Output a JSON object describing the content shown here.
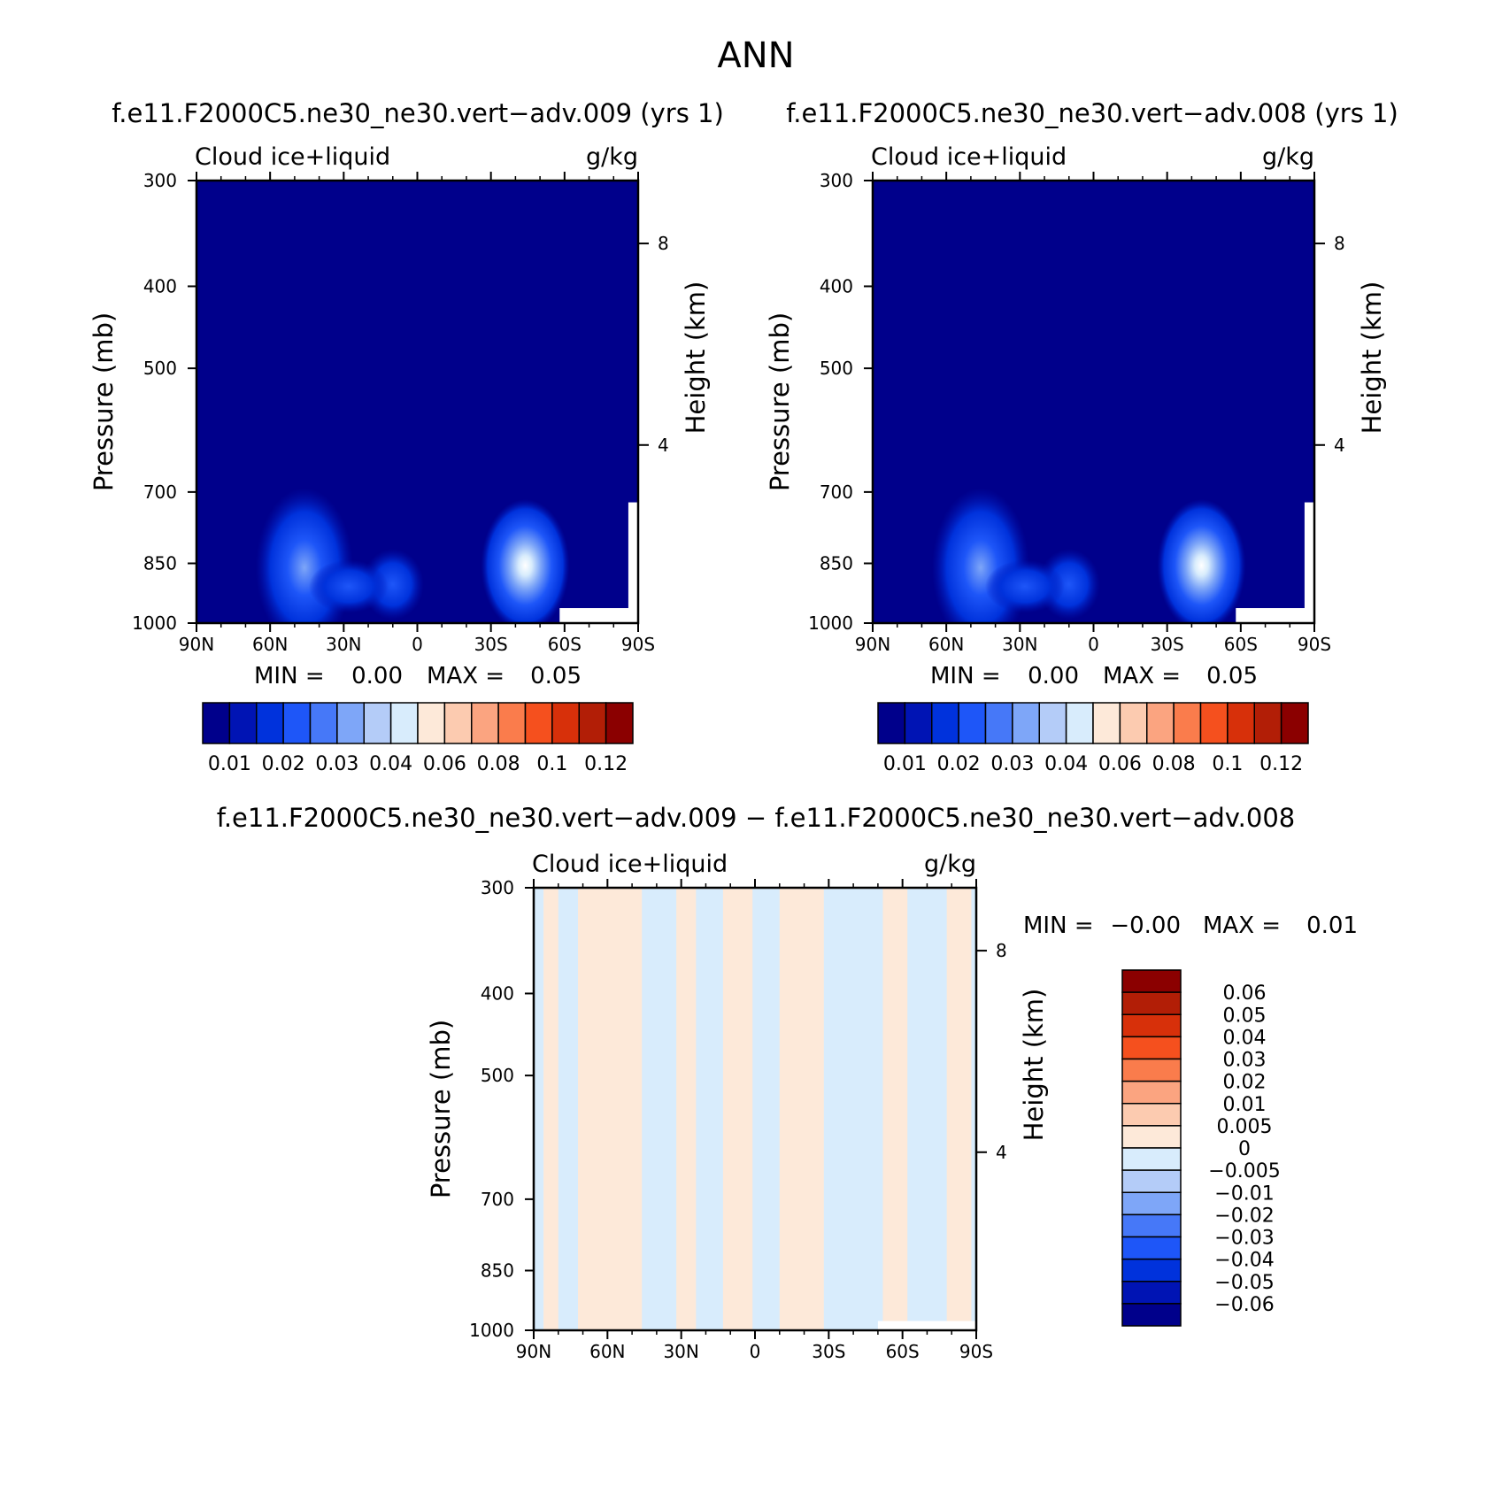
{
  "figure": {
    "title": "ANN"
  },
  "chart_data": [
    {
      "type": "heatmap",
      "title": "f.e11.F2000C5.ne30_ne30.vert−adv.009 (yrs 1)",
      "variable": "Cloud ice+liquid",
      "units": "g/kg",
      "xlabel": "",
      "ylabel": "Pressure (mb)",
      "ylabel_right": "Height (km)",
      "x_ticks": [
        "90N",
        "60N",
        "30N",
        "0",
        "30S",
        "60S",
        "90S"
      ],
      "x_range": [
        90,
        -90
      ],
      "y_ticks": [
        300,
        400,
        500,
        700,
        850,
        1000
      ],
      "y_range": [
        300,
        1000
      ],
      "y_scale": "log",
      "height_ticks": [
        "8",
        "4"
      ],
      "min_label": "MIN =",
      "min_value": "0.00",
      "max_label": "MAX =",
      "max_value": "0.05",
      "colorbar_orientation": "horizontal",
      "colorbar_labels": [
        "0.01",
        "0.02",
        "0.03",
        "0.04",
        "0.06",
        "0.08",
        "0.1",
        "0.12"
      ],
      "colorbar_colors": [
        "#00008b",
        "#0014b4",
        "#0032dc",
        "#1e56f8",
        "#4678f8",
        "#7ea6f8",
        "#b4ccf8",
        "#d8ecfc",
        "#fde9d9",
        "#fccbb0",
        "#fba480",
        "#fa7c4c",
        "#f5501e",
        "#d7300a",
        "#b21e06",
        "#8b0000"
      ],
      "features": [
        {
          "lat": 46,
          "p": 860,
          "value": 0.025
        },
        {
          "lat": -44,
          "p": 855,
          "value": 0.05
        },
        {
          "lat": 10,
          "p": 900,
          "value": 0.01
        },
        {
          "lat": 28,
          "p": 905,
          "value": 0.007
        }
      ]
    },
    {
      "type": "heatmap",
      "title": "f.e11.F2000C5.ne30_ne30.vert−adv.008 (yrs 1)",
      "variable": "Cloud ice+liquid",
      "units": "g/kg",
      "xlabel": "",
      "ylabel": "Pressure (mb)",
      "ylabel_right": "Height (km)",
      "x_ticks": [
        "90N",
        "60N",
        "30N",
        "0",
        "30S",
        "60S",
        "90S"
      ],
      "x_range": [
        90,
        -90
      ],
      "y_ticks": [
        300,
        400,
        500,
        700,
        850,
        1000
      ],
      "y_range": [
        300,
        1000
      ],
      "y_scale": "log",
      "height_ticks": [
        "8",
        "4"
      ],
      "min_label": "MIN =",
      "min_value": "0.00",
      "max_label": "MAX =",
      "max_value": "0.05",
      "colorbar_orientation": "horizontal",
      "colorbar_labels": [
        "0.01",
        "0.02",
        "0.03",
        "0.04",
        "0.06",
        "0.08",
        "0.1",
        "0.12"
      ],
      "colorbar_colors": [
        "#00008b",
        "#0014b4",
        "#0032dc",
        "#1e56f8",
        "#4678f8",
        "#7ea6f8",
        "#b4ccf8",
        "#d8ecfc",
        "#fde9d9",
        "#fccbb0",
        "#fba480",
        "#fa7c4c",
        "#f5501e",
        "#d7300a",
        "#b21e06",
        "#8b0000"
      ],
      "features": [
        {
          "lat": 46,
          "p": 860,
          "value": 0.025
        },
        {
          "lat": -44,
          "p": 855,
          "value": 0.05
        },
        {
          "lat": 10,
          "p": 900,
          "value": 0.01
        },
        {
          "lat": 28,
          "p": 905,
          "value": 0.007
        }
      ]
    },
    {
      "type": "heatmap",
      "title": "f.e11.F2000C5.ne30_ne30.vert−adv.009 − f.e11.F2000C5.ne30_ne30.vert−adv.008",
      "variable": "Cloud ice+liquid",
      "units": "g/kg",
      "xlabel": "",
      "ylabel": "Pressure (mb)",
      "ylabel_right": "Height (km)",
      "x_ticks": [
        "90N",
        "60N",
        "30N",
        "0",
        "30S",
        "60S",
        "90S"
      ],
      "x_range": [
        90,
        -90
      ],
      "y_ticks": [
        300,
        400,
        500,
        700,
        850,
        1000
      ],
      "y_range": [
        300,
        1000
      ],
      "y_scale": "log",
      "height_ticks": [
        "8",
        "4"
      ],
      "min_label": "MIN =",
      "min_value": "−0.00",
      "max_label": "MAX =",
      "max_value": "0.01",
      "colorbar_orientation": "vertical",
      "colorbar_labels": [
        "0.06",
        "0.05",
        "0.04",
        "0.03",
        "0.02",
        "0.01",
        "0.005",
        "0",
        "−0.005",
        "−0.01",
        "−0.02",
        "−0.03",
        "−0.04",
        "−0.05",
        "−0.06"
      ],
      "colorbar_colors": [
        "#8b0000",
        "#b21e06",
        "#d7300a",
        "#f5501e",
        "#fa7c4c",
        "#fba480",
        "#fccbb0",
        "#fde9d9",
        "#d8ecfc",
        "#b4ccf8",
        "#7ea6f8",
        "#4678f8",
        "#1e56f8",
        "#0032dc",
        "#0014b4",
        "#00008b"
      ],
      "positive_lat_bands": [
        [
          86,
          80
        ],
        [
          72,
          46
        ],
        [
          32,
          24
        ],
        [
          13,
          1
        ],
        [
          -10,
          -28
        ],
        [
          -52,
          -62
        ],
        [
          -78,
          -88
        ]
      ],
      "positive_color": "#fde9d9",
      "negative_color": "#d8ecfc"
    }
  ]
}
